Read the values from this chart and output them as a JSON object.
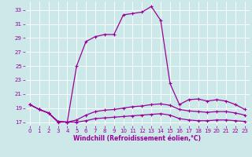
{
  "xlabel": "Windchill (Refroidissement éolien,°C)",
  "x_ticks": [
    0,
    1,
    2,
    3,
    4,
    5,
    6,
    7,
    8,
    9,
    10,
    11,
    12,
    13,
    14,
    15,
    16,
    17,
    18,
    19,
    20,
    21,
    22,
    23
  ],
  "y_ticks": [
    17,
    19,
    21,
    23,
    25,
    27,
    29,
    31,
    33
  ],
  "ylim": [
    16.5,
    34.2
  ],
  "xlim": [
    -0.5,
    23.5
  ],
  "bg_color": "#cce8e8",
  "grid_color": "#ffffff",
  "line_color": "#990099",
  "line1_y": [
    19.5,
    18.8,
    18.3,
    17.1,
    17.0,
    17.3,
    18.0,
    18.5,
    18.7,
    18.8,
    19.0,
    19.2,
    19.3,
    19.5,
    19.6,
    19.4,
    18.8,
    18.6,
    18.5,
    18.4,
    18.5,
    18.5,
    18.3,
    18.0
  ],
  "line2_y": [
    19.5,
    18.8,
    18.3,
    17.1,
    17.0,
    25.0,
    28.5,
    29.2,
    29.5,
    29.5,
    32.3,
    32.5,
    32.7,
    33.5,
    31.5,
    22.5,
    19.5,
    20.2,
    20.3,
    20.0,
    20.2,
    20.0,
    19.5,
    18.8
  ],
  "line3_y": [
    19.5,
    18.8,
    18.3,
    17.0,
    17.0,
    17.0,
    17.2,
    17.5,
    17.6,
    17.7,
    17.8,
    17.9,
    18.0,
    18.1,
    18.2,
    18.0,
    17.5,
    17.3,
    17.2,
    17.2,
    17.3,
    17.3,
    17.2,
    17.1
  ]
}
